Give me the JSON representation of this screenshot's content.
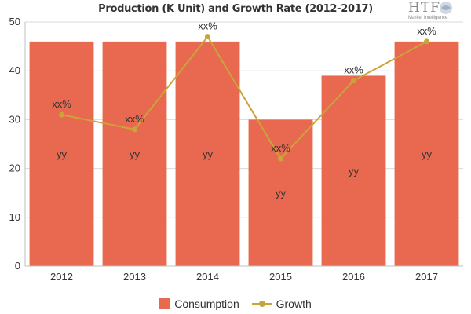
{
  "chart_data": {
    "type": "bar",
    "title": "Production (K Unit) and Growth Rate (2012-2017)",
    "categories": [
      "2012",
      "2013",
      "2014",
      "2015",
      "2016",
      "2017"
    ],
    "ylim": [
      0,
      50
    ],
    "yticks": [
      0,
      10,
      20,
      30,
      40,
      50
    ],
    "grid": true,
    "legend_position": "bottom",
    "series": [
      {
        "name": "Consumption",
        "type": "bar",
        "color": "#e8694f",
        "values": [
          46,
          46,
          46,
          30,
          39,
          46
        ],
        "labels": [
          "yy",
          "yy",
          "yy",
          "yy",
          "yy",
          "yy"
        ]
      },
      {
        "name": "Growth",
        "type": "line",
        "color": "#c9a43a",
        "values": [
          31,
          28,
          47,
          22,
          38,
          46
        ],
        "labels": [
          "xx%",
          "xx%",
          "xx%",
          "xx%",
          "xx%",
          "xx%"
        ]
      }
    ]
  },
  "logo": {
    "text": "HTF",
    "subtext": "Market Intelligence"
  }
}
